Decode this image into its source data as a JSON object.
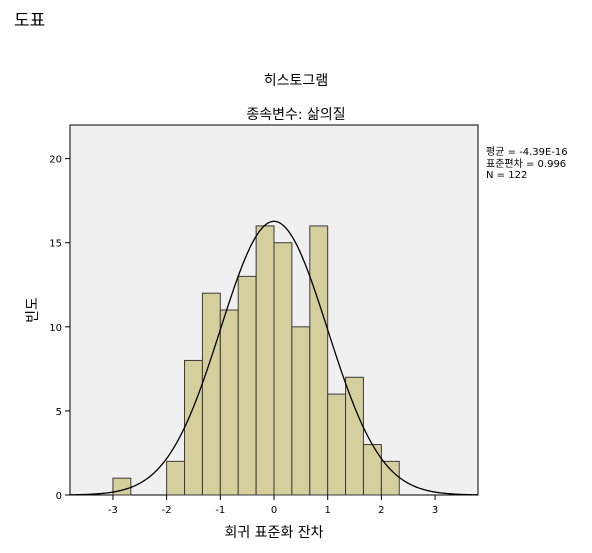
{
  "section_title": "도표",
  "chart_data": {
    "type": "bar",
    "title": "히스토그램",
    "subtitle": "종속변수: 삶의질",
    "xlabel": "회귀 표준화 잔차",
    "ylabel": "빈도",
    "xlim": [
      -3.8,
      3.8
    ],
    "ylim": [
      0,
      22
    ],
    "x_ticks": [
      -3,
      -2,
      -1,
      0,
      1,
      2,
      3
    ],
    "y_ticks": [
      0,
      5,
      10,
      15,
      20
    ],
    "bin_width": 0.333,
    "bins": [
      {
        "start": -3.0,
        "value": 1
      },
      {
        "start": -2.0,
        "value": 2
      },
      {
        "start": -1.667,
        "value": 8
      },
      {
        "start": -1.333,
        "value": 12
      },
      {
        "start": -1.0,
        "value": 11
      },
      {
        "start": -0.667,
        "value": 13
      },
      {
        "start": -0.333,
        "value": 16
      },
      {
        "start": 0.0,
        "value": 15
      },
      {
        "start": 0.333,
        "value": 10
      },
      {
        "start": 0.667,
        "value": 16
      },
      {
        "start": 1.0,
        "value": 6
      },
      {
        "start": 1.333,
        "value": 7
      },
      {
        "start": 1.667,
        "value": 3
      },
      {
        "start": 2.0,
        "value": 2
      }
    ],
    "normal_curve": {
      "mean": -4.39e-16,
      "sd": 0.996,
      "n": 122
    },
    "stats_text": [
      "평균 = -4.39E-16",
      "표준편차 = 0.996",
      "N = 122"
    ],
    "colors": {
      "bar_fill": "#d4cf9c",
      "bar_stroke": "#3a3a3a",
      "plot_bg": "#f0f0f0",
      "curve": "#000000"
    }
  }
}
